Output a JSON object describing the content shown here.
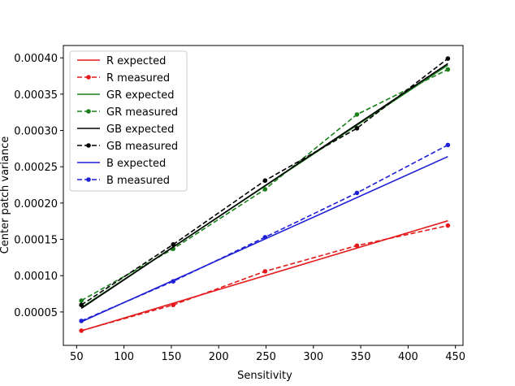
{
  "chart_data": {
    "type": "line",
    "title": "",
    "xlabel": "Sensitivity",
    "ylabel": "Center patch variance",
    "xlim": [
      36,
      458
    ],
    "ylim": [
      4e-06,
      0.000417
    ],
    "xticks": [
      50,
      100,
      150,
      200,
      250,
      300,
      350,
      400,
      450
    ],
    "yticks": [
      "0.00005",
      "0.00010",
      "0.00015",
      "0.00020",
      "0.00025",
      "0.00030",
      "0.00035",
      "0.00040"
    ],
    "grid": false,
    "legend_position": "top-left",
    "series": [
      {
        "name": "R expected",
        "color": "#e41a1c",
        "style": "solid",
        "marker": false,
        "x": [
          55,
          442
        ],
        "y": [
          2.4e-05,
          0.0001756
        ]
      },
      {
        "name": "R measured",
        "color": "#e41a1c",
        "style": "dashed",
        "marker": true,
        "x": [
          55,
          152,
          249,
          346,
          442
        ],
        "y": [
          2.43e-05,
          5.97e-05,
          0.000106,
          0.0001414,
          0.000169
        ]
      },
      {
        "name": "GR expected",
        "color": "#1a7f1a",
        "style": "solid",
        "marker": false,
        "x": [
          55,
          442
        ],
        "y": [
          5.6e-05,
          0.00039
        ]
      },
      {
        "name": "GR measured",
        "color": "#1a7f1a",
        "style": "dashed",
        "marker": true,
        "x": [
          55,
          152,
          249,
          346,
          442
        ],
        "y": [
          6.57e-05,
          0.000137,
          0.000219,
          0.000322,
          0.000384
        ]
      },
      {
        "name": "GB expected",
        "color": "#000000",
        "style": "solid",
        "marker": false,
        "x": [
          55,
          442
        ],
        "y": [
          5.5e-05,
          0.000392
        ]
      },
      {
        "name": "GB measured",
        "color": "#000000",
        "style": "dashed",
        "marker": true,
        "x": [
          55,
          152,
          249,
          346,
          442
        ],
        "y": [
          5.97e-05,
          0.000143,
          0.000231,
          0.000303,
          0.000399
        ]
      },
      {
        "name": "B expected",
        "color": "#1f1fd6",
        "style": "solid",
        "marker": false,
        "x": [
          55,
          442
        ],
        "y": [
          3.65e-05,
          0.000264
        ]
      },
      {
        "name": "B measured",
        "color": "#1f1fd6",
        "style": "dashed",
        "marker": true,
        "x": [
          55,
          152,
          249,
          346,
          442
        ],
        "y": [
          3.77e-05,
          9.22e-05,
          0.000153,
          0.000214,
          0.00028
        ]
      }
    ]
  }
}
